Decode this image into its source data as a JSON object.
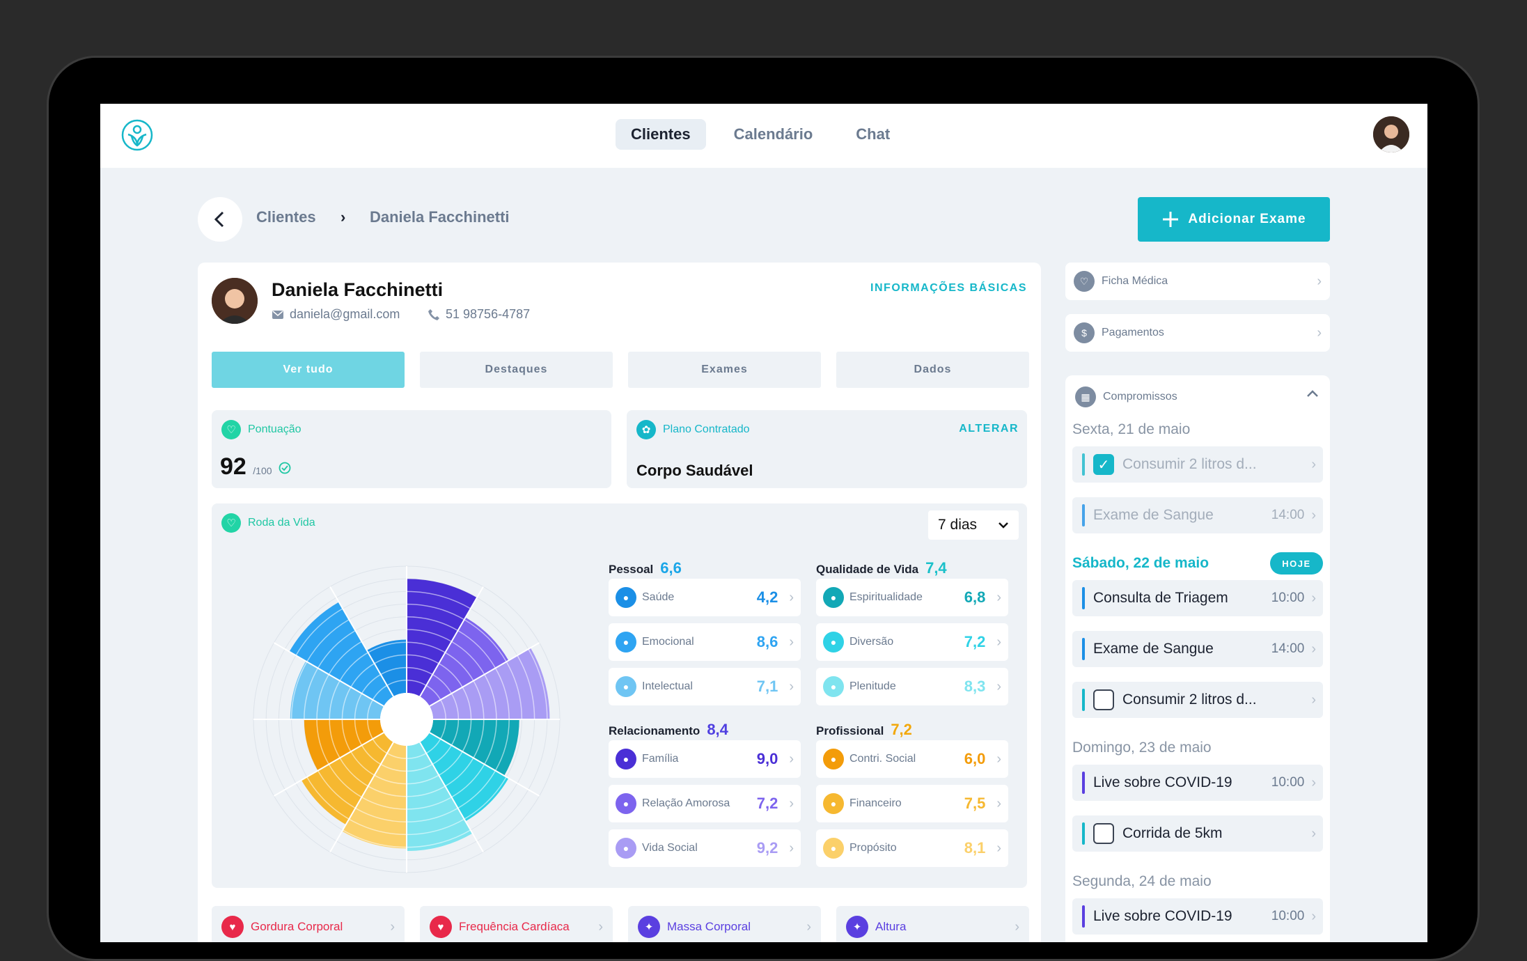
{
  "nav": {
    "tabs": [
      "Clientes",
      "Calendário",
      "Chat"
    ]
  },
  "breadcrumb": {
    "parent": "Clientes",
    "separator": "›",
    "current": "Daniela Facchinetti"
  },
  "actions": {
    "add_exam": "Adicionar Exame"
  },
  "profile": {
    "name": "Daniela Facchinetti",
    "email": "daniela@gmail.com",
    "phone": "51 98756-4787",
    "info_link": "INFORMAÇÕES BÁSICAS"
  },
  "tabs": [
    "Ver tudo",
    "Destaques",
    "Exames",
    "Dados"
  ],
  "score": {
    "label": "Pontuação",
    "value": "92",
    "max": "/100"
  },
  "plan": {
    "label": "Plano Contratado",
    "name": "Corpo Saudável",
    "action": "ALTERAR"
  },
  "wheel": {
    "label": "Roda da Vida",
    "period": "7 dias"
  },
  "categories": [
    {
      "name": "Pessoal",
      "score": "6,6",
      "color": "#1aa6e8",
      "items": [
        {
          "label": "Saúde",
          "value": "4,2",
          "color": "#1b8fe6"
        },
        {
          "label": "Emocional",
          "value": "8,6",
          "color": "#2ea4f2"
        },
        {
          "label": "Intelectual",
          "value": "7,1",
          "color": "#6fc5f3"
        }
      ]
    },
    {
      "name": "Qualidade de Vida",
      "score": "7,4",
      "color": "#1ac0c9",
      "items": [
        {
          "label": "Espiritualidade",
          "value": "6,8",
          "color": "#12a8b6"
        },
        {
          "label": "Diversão",
          "value": "7,2",
          "color": "#2fd2e6"
        },
        {
          "label": "Plenitude",
          "value": "8,3",
          "color": "#7fe4ef"
        }
      ]
    },
    {
      "name": "Relacionamento",
      "score": "8,4",
      "color": "#4f3fe0",
      "items": [
        {
          "label": "Família",
          "value": "9,0",
          "color": "#4a2fd6"
        },
        {
          "label": "Relação Amorosa",
          "value": "7,2",
          "color": "#7d64ee"
        },
        {
          "label": "Vida Social",
          "value": "9,2",
          "color": "#a99cf4"
        }
      ]
    },
    {
      "name": "Profissional",
      "score": "7,2",
      "color": "#f2a80c",
      "items": [
        {
          "label": "Contri. Social",
          "value": "6,0",
          "color": "#f39c0a"
        },
        {
          "label": "Financeiro",
          "value": "7,5",
          "color": "#f6b830"
        },
        {
          "label": "Propósito",
          "value": "8,1",
          "color": "#fbd06a"
        }
      ]
    }
  ],
  "metrics": [
    {
      "label": "Gordura Corporal",
      "color": "#e8294a"
    },
    {
      "label": "Frequência Cardíaca",
      "color": "#e8294a"
    },
    {
      "label": "Massa Corporal",
      "color": "#5a3fe0"
    },
    {
      "label": "Altura",
      "color": "#5a3fe0"
    }
  ],
  "side": {
    "ficha": "Ficha Médica",
    "pagamentos": "Pagamentos",
    "compromissos": "Compromissos",
    "today_badge": "HOJE"
  },
  "days": [
    {
      "label": "Sexta, 21 de maio",
      "today": false,
      "events": [
        {
          "title": "Consumir 2 litros d...",
          "time": "",
          "check": true,
          "checked": true,
          "color": "#16b7c9",
          "faded": true
        },
        {
          "title": "Exame de Sangue",
          "time": "14:00",
          "check": false,
          "checked": false,
          "color": "#1b8fe6",
          "faded": true
        }
      ]
    },
    {
      "label": "Sábado, 22 de maio",
      "today": true,
      "events": [
        {
          "title": "Consulta de Triagem",
          "time": "10:00",
          "check": false,
          "checked": false,
          "color": "#1b8fe6",
          "faded": false
        },
        {
          "title": "Exame de Sangue",
          "time": "14:00",
          "check": false,
          "checked": false,
          "color": "#1b8fe6",
          "faded": false
        },
        {
          "title": "Consumir 2 litros d...",
          "time": "",
          "check": true,
          "checked": false,
          "color": "#16b7c9",
          "faded": false
        }
      ]
    },
    {
      "label": "Domingo, 23 de maio",
      "today": false,
      "events": [
        {
          "title": "Live sobre COVID-19",
          "time": "10:00",
          "check": false,
          "checked": false,
          "color": "#5a3fe0",
          "faded": false
        },
        {
          "title": "Corrida de 5km",
          "time": "",
          "check": true,
          "checked": false,
          "color": "#16b7c9",
          "faded": false
        }
      ]
    },
    {
      "label": "Segunda, 24 de maio",
      "today": false,
      "events": [
        {
          "title": "Live sobre COVID-19",
          "time": "10:00",
          "check": false,
          "checked": false,
          "color": "#5a3fe0",
          "faded": false
        }
      ]
    }
  ],
  "chart_data": {
    "type": "polar-area",
    "scale_max": 10,
    "categories": [
      "Família",
      "Relação Amorosa",
      "Vida Social",
      "Espiritualidade",
      "Diversão",
      "Plenitude",
      "Propósito",
      "Financeiro",
      "Contri. Social",
      "Intelectual",
      "Emocional",
      "Saúde"
    ],
    "values": [
      9.0,
      7.2,
      9.2,
      6.8,
      7.2,
      8.3,
      8.1,
      7.5,
      6.0,
      7.1,
      8.6,
      4.2
    ],
    "colors": [
      "#4a2fd6",
      "#7d64ee",
      "#a99cf4",
      "#12a8b6",
      "#2fd2e6",
      "#7fe4ef",
      "#fbd06a",
      "#f6b830",
      "#f39c0a",
      "#6fc5f3",
      "#2ea4f2",
      "#1b8fe6"
    ]
  }
}
